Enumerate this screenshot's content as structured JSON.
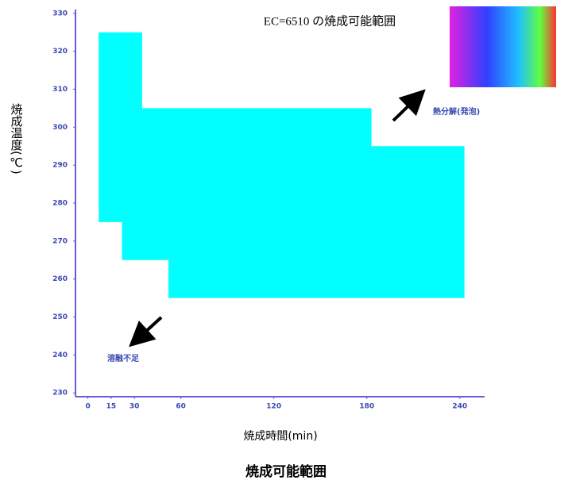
{
  "chart_data": {
    "type": "area",
    "title": "EC=6510 の焼成可能範囲",
    "caption": "焼成可能範囲",
    "x_label": "焼成時間(min)",
    "y_label": "焼成温度(℃)",
    "annotations": [
      "熱分解(発泡)",
      "溶融不足"
    ],
    "x": [
      7,
      35,
      35,
      183,
      183,
      243,
      243,
      52,
      52,
      22,
      22,
      7
    ],
    "values": [
      325,
      325,
      305,
      305,
      295,
      295,
      255,
      255,
      265,
      265,
      275,
      275
    ],
    "color": "#00ffff",
    "xlim": [
      -8,
      256
    ],
    "ylim": [
      229,
      331
    ],
    "xticks": [
      0,
      15,
      30,
      60,
      120,
      180,
      240
    ],
    "yticks": [
      230,
      240,
      250,
      260,
      270,
      280,
      290,
      300,
      310,
      320,
      330
    ],
    "grid": false
  }
}
